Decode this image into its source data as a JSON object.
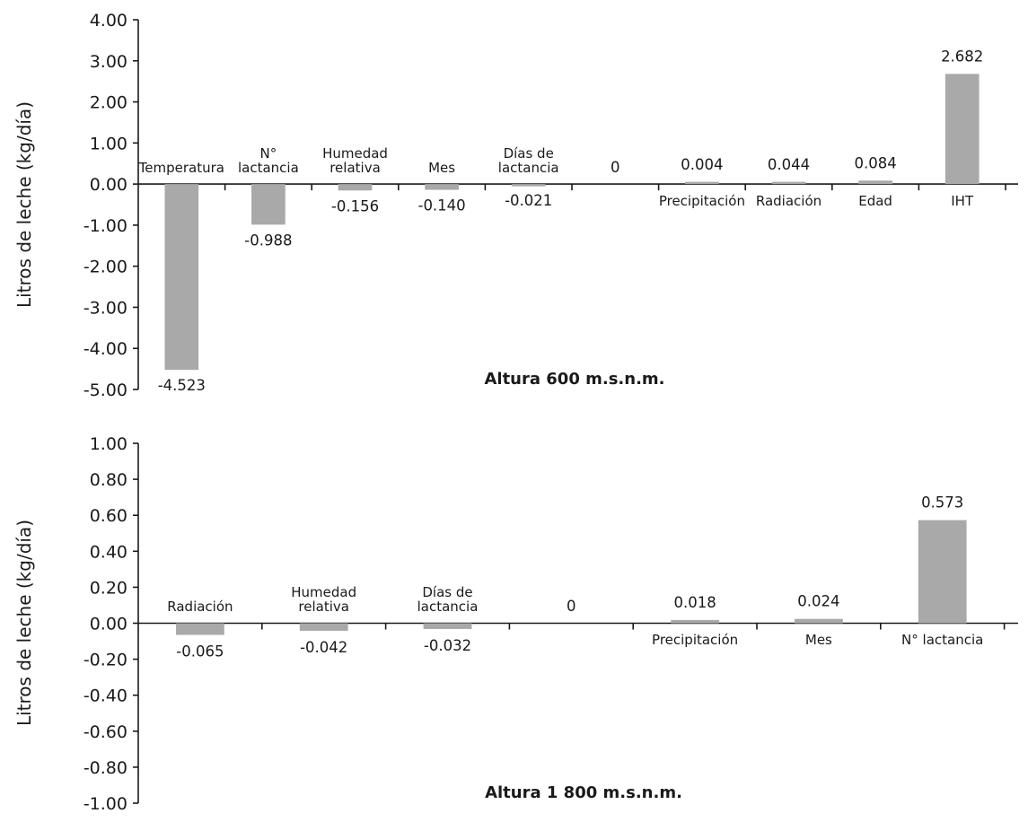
{
  "chart_data": [
    {
      "type": "bar",
      "title": "Altura 600 m.s.n.m.",
      "ylabel": "Litros de leche (kg/día)",
      "ylim": [
        -5,
        4
      ],
      "yticks": [
        "4.00",
        "3.00",
        "2.00",
        "1.00",
        "0.00",
        "-1.00",
        "-2.00",
        "-3.00",
        "-4.00",
        "-5.00"
      ],
      "grid": false,
      "categories": [
        [
          "Temperatura"
        ],
        [
          "N°",
          "lactancia"
        ],
        [
          "Humedad",
          "relativa"
        ],
        [
          "Mes"
        ],
        [
          "Días de",
          "lactancia"
        ],
        [
          "0"
        ],
        [
          "Precipitación"
        ],
        [
          "Radiación"
        ],
        [
          "Edad"
        ],
        [
          "IHT"
        ]
      ],
      "values": [
        -4.523,
        -0.988,
        -0.156,
        -0.14,
        -0.021,
        null,
        0.004,
        0.044,
        0.084,
        2.682
      ],
      "value_labels": [
        "-4.523",
        "-0.988",
        "-0.156",
        "-0.140",
        "-0.021",
        "",
        "0.004",
        "0.044",
        "0.084",
        "2.682"
      ],
      "bar_color": "#a9a9a9"
    },
    {
      "type": "bar",
      "title": "Altura 1 800 m.s.n.m.",
      "ylabel": "Litros de leche (kg/día)",
      "ylim": [
        -1,
        1
      ],
      "yticks": [
        "1.00",
        "0.80",
        "0.60",
        "0.40",
        "0.20",
        "0.00",
        "-0.20",
        "-0.40",
        "-0.60",
        "-0.80",
        "-1.00"
      ],
      "grid": false,
      "categories": [
        [
          "Radiación"
        ],
        [
          "Humedad",
          "relativa"
        ],
        [
          "Días de",
          "lactancia"
        ],
        [
          "0"
        ],
        [
          "Precipitación"
        ],
        [
          "Mes"
        ],
        [
          "N° lactancia"
        ]
      ],
      "values": [
        -0.065,
        -0.042,
        -0.032,
        null,
        0.018,
        0.024,
        0.573
      ],
      "value_labels": [
        "-0.065",
        "-0.042",
        "-0.032",
        "",
        "0.018",
        "0.024",
        "0.573"
      ],
      "bar_color": "#a9a9a9"
    }
  ]
}
